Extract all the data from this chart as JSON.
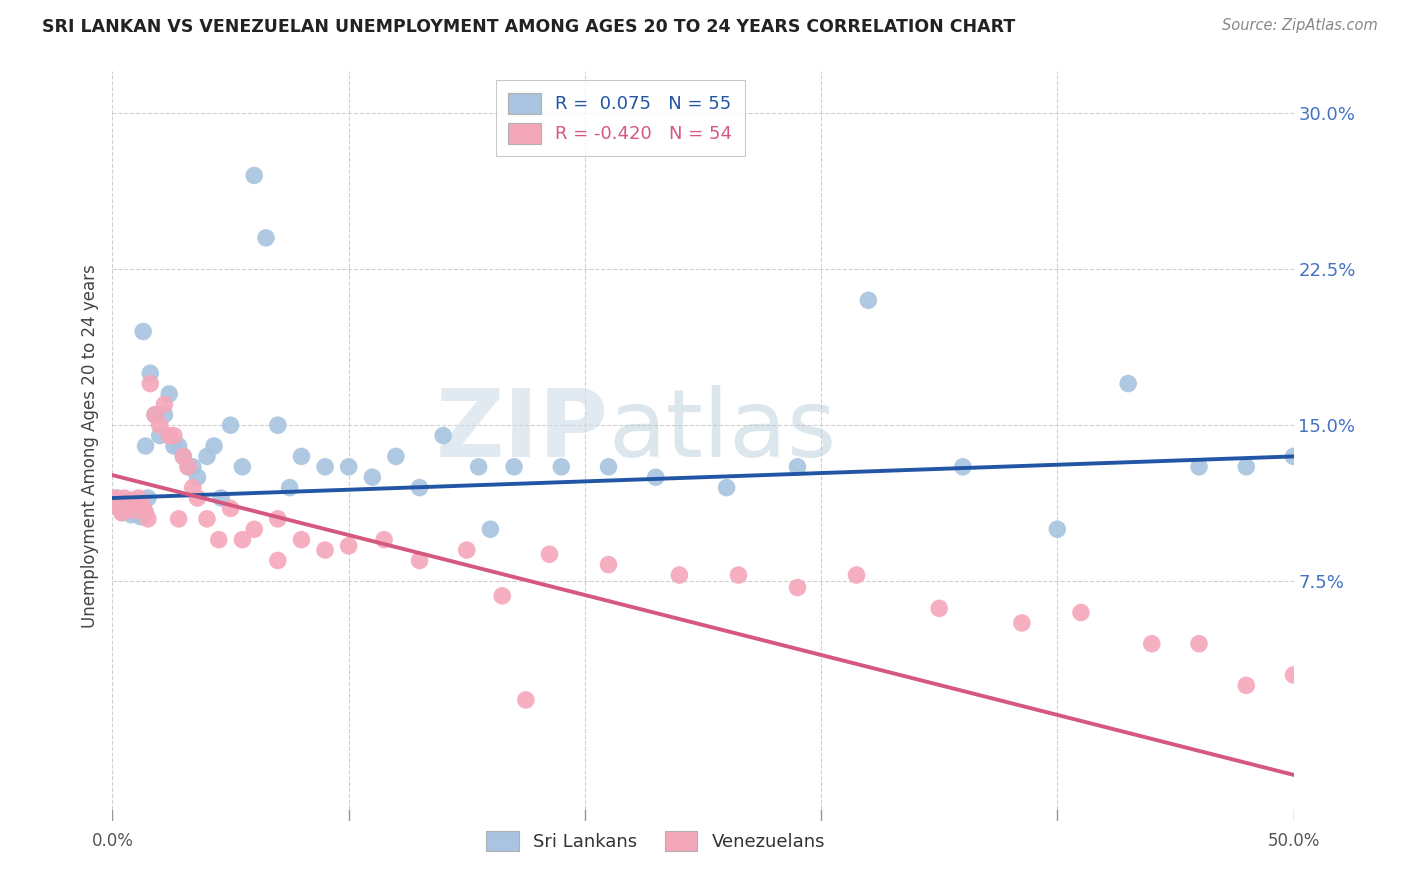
{
  "title": "SRI LANKAN VS VENEZUELAN UNEMPLOYMENT AMONG AGES 20 TO 24 YEARS CORRELATION CHART",
  "source": "Source: ZipAtlas.com",
  "ylabel": "Unemployment Among Ages 20 to 24 years",
  "xlim": [
    0.0,
    0.5
  ],
  "ylim": [
    -0.04,
    0.32
  ],
  "sri_lankan_R": 0.075,
  "sri_lankan_N": 55,
  "venezuelan_R": -0.42,
  "venezuelan_N": 54,
  "sri_lankan_color": "#a8c4e0",
  "venezuelan_color": "#f4a7b9",
  "sri_lankan_line_color": "#2255a4",
  "venezuelan_line_color": "#d45880",
  "background_color": "#ffffff",
  "watermark_zip": "ZIP",
  "watermark_atlas": "atlas",
  "sri_lankans_x": [
    0.002,
    0.003,
    0.004,
    0.006,
    0.007,
    0.008,
    0.009,
    0.01,
    0.011,
    0.012,
    0.013,
    0.014,
    0.015,
    0.016,
    0.018,
    0.02,
    0.022,
    0.024,
    0.026,
    0.028,
    0.03,
    0.032,
    0.034,
    0.036,
    0.04,
    0.043,
    0.046,
    0.05,
    0.055,
    0.06,
    0.065,
    0.07,
    0.08,
    0.09,
    0.1,
    0.11,
    0.12,
    0.13,
    0.14,
    0.155,
    0.17,
    0.19,
    0.21,
    0.23,
    0.26,
    0.29,
    0.32,
    0.36,
    0.4,
    0.43,
    0.46,
    0.48,
    0.5,
    0.16,
    0.075
  ],
  "sri_lankans_y": [
    0.115,
    0.11,
    0.108,
    0.112,
    0.109,
    0.107,
    0.113,
    0.11,
    0.108,
    0.106,
    0.195,
    0.14,
    0.115,
    0.175,
    0.155,
    0.145,
    0.155,
    0.165,
    0.14,
    0.14,
    0.135,
    0.13,
    0.13,
    0.125,
    0.135,
    0.14,
    0.115,
    0.15,
    0.13,
    0.27,
    0.24,
    0.15,
    0.135,
    0.13,
    0.13,
    0.125,
    0.135,
    0.12,
    0.145,
    0.13,
    0.13,
    0.13,
    0.13,
    0.125,
    0.12,
    0.13,
    0.21,
    0.13,
    0.1,
    0.17,
    0.13,
    0.13,
    0.135,
    0.1,
    0.12
  ],
  "venezuelans_x": [
    0.001,
    0.002,
    0.003,
    0.004,
    0.005,
    0.006,
    0.007,
    0.008,
    0.009,
    0.01,
    0.011,
    0.012,
    0.013,
    0.014,
    0.015,
    0.016,
    0.018,
    0.02,
    0.022,
    0.024,
    0.026,
    0.028,
    0.03,
    0.032,
    0.034,
    0.036,
    0.04,
    0.045,
    0.05,
    0.055,
    0.06,
    0.07,
    0.08,
    0.09,
    0.1,
    0.115,
    0.13,
    0.15,
    0.165,
    0.185,
    0.21,
    0.24,
    0.265,
    0.29,
    0.315,
    0.35,
    0.385,
    0.41,
    0.44,
    0.46,
    0.48,
    0.5,
    0.175,
    0.07
  ],
  "venezuelans_y": [
    0.115,
    0.112,
    0.11,
    0.108,
    0.115,
    0.113,
    0.111,
    0.114,
    0.109,
    0.113,
    0.115,
    0.113,
    0.11,
    0.108,
    0.105,
    0.17,
    0.155,
    0.15,
    0.16,
    0.145,
    0.145,
    0.105,
    0.135,
    0.13,
    0.12,
    0.115,
    0.105,
    0.095,
    0.11,
    0.095,
    0.1,
    0.105,
    0.095,
    0.09,
    0.092,
    0.095,
    0.085,
    0.09,
    0.068,
    0.088,
    0.083,
    0.078,
    0.078,
    0.072,
    0.078,
    0.062,
    0.055,
    0.06,
    0.045,
    0.045,
    0.025,
    0.03,
    0.018,
    0.085
  ]
}
